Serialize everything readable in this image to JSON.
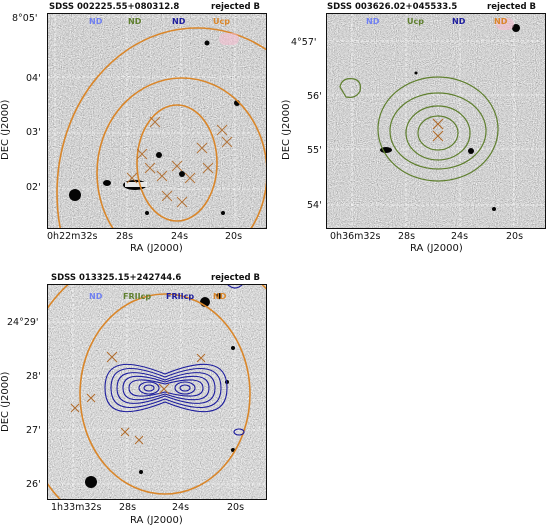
{
  "panels": [
    {
      "name": "SDSS 002225.55+080312.8",
      "status": "rejected B",
      "legend": [
        {
          "text": "ND",
          "color": "#6f7ff0"
        },
        {
          "text": "ND",
          "color": "#5f7f2e"
        },
        {
          "text": "ND",
          "color": "#1d1d9e"
        },
        {
          "text": "Ucp",
          "color": "#d9862a"
        }
      ],
      "y_ticks": [
        "8°05'",
        "04'",
        "03'",
        "02'"
      ],
      "x_ticks": [
        "0h22m32s",
        "28s",
        "24s",
        "20s"
      ],
      "x_label": "RA (J2000)",
      "y_label": "DEC (J2000)"
    },
    {
      "name": "SDSS 003626.02+045533.5",
      "status": "rejected B",
      "legend": [
        {
          "text": "ND",
          "color": "#6f7ff0"
        },
        {
          "text": "Ucp",
          "color": "#5f7f2e"
        },
        {
          "text": "ND",
          "color": "#1d1d9e"
        },
        {
          "text": "ND",
          "color": "#d9862a"
        }
      ],
      "y_ticks": [
        "4°57'",
        "56'",
        "55'",
        "54'"
      ],
      "x_ticks": [
        "0h36m32s",
        "28s",
        "24s",
        "20s"
      ],
      "x_label": "RA (J2000)",
      "y_label": "DEC (J2000)"
    },
    {
      "name": "SDSS 013325.15+242744.6",
      "status": "rejected B",
      "legend": [
        {
          "text": "ND",
          "color": "#6f7ff0"
        },
        {
          "text": "FRIIcp",
          "color": "#5f7f2e"
        },
        {
          "text": "FRIIcp",
          "color": "#1d1d9e"
        },
        {
          "text": "ND",
          "color": "#d9862a"
        }
      ],
      "y_ticks": [
        "24°29'",
        "28'",
        "27'",
        "26'"
      ],
      "x_ticks": [
        "1h33m32s",
        "28s",
        "24s",
        "20s"
      ],
      "x_label": "RA (J2000)",
      "y_label": "DEC (J2000)"
    }
  ],
  "colors": {
    "orange": "#d9862a",
    "green": "#5f7f2e",
    "navy": "#1d1d9e",
    "lightblue": "#6f7ff0"
  }
}
